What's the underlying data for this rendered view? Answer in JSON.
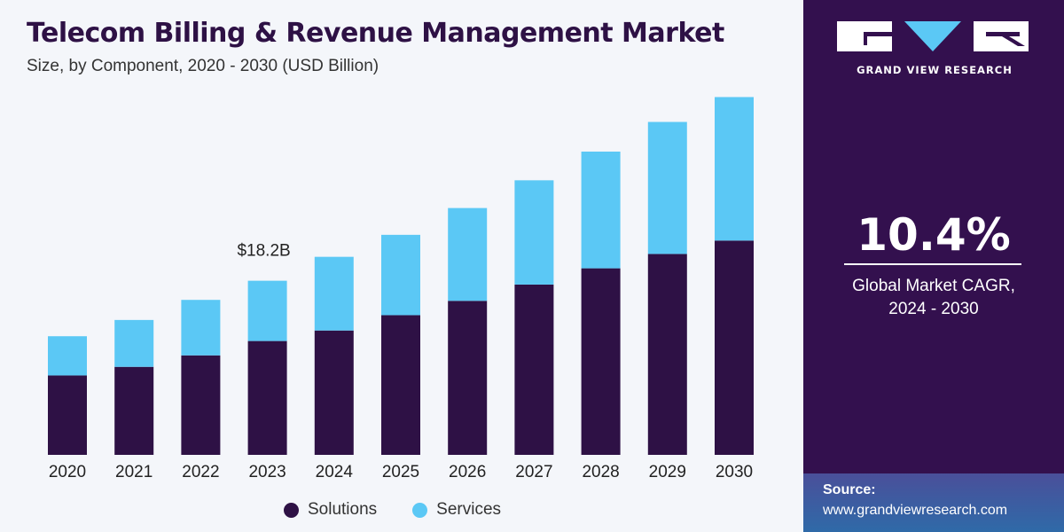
{
  "header": {
    "title": "Telecom Billing & Revenue Management Market",
    "subtitle": "Size, by Component, 2020 - 2030 (USD Billion)"
  },
  "chart_data": {
    "type": "bar",
    "stacked": true,
    "title": "Telecom Billing & Revenue Management Market",
    "subtitle": "Size, by Component, 2020 - 2030 (USD Billion)",
    "xlabel": "",
    "ylabel": "USD Billion",
    "categories": [
      "2020",
      "2021",
      "2022",
      "2023",
      "2024",
      "2025",
      "2026",
      "2027",
      "2028",
      "2029",
      "2030"
    ],
    "series": [
      {
        "name": "Solutions",
        "color": "#2e1145",
        "values": [
          8.3,
          9.2,
          10.4,
          11.9,
          13.0,
          14.6,
          16.1,
          17.8,
          19.5,
          21.0,
          22.4
        ]
      },
      {
        "name": "Services",
        "color": "#5bc8f5",
        "values": [
          4.1,
          4.9,
          5.8,
          6.3,
          7.7,
          8.4,
          9.7,
          10.9,
          12.2,
          13.8,
          15.0
        ]
      }
    ],
    "ylim": [
      0,
      38
    ],
    "annotations": [
      {
        "category": "2023",
        "text": "$18.2B"
      }
    ],
    "grid": false,
    "legend": "bottom"
  },
  "legend": {
    "items": [
      {
        "label": "Solutions",
        "color": "#2e1145"
      },
      {
        "label": "Services",
        "color": "#5bc8f5"
      }
    ]
  },
  "sidebar": {
    "logo_text": "GRAND VIEW RESEARCH",
    "cagr_value": "10.4%",
    "cagr_label_line1": "Global Market CAGR,",
    "cagr_label_line2": "2024 - 2030",
    "source_label": "Source:",
    "source_url": "www.grandviewresearch.com"
  },
  "colors": {
    "brand_dark": "#33104e",
    "solutions": "#2e1145",
    "services": "#5bc8f5",
    "background": "#f4f6fa"
  }
}
